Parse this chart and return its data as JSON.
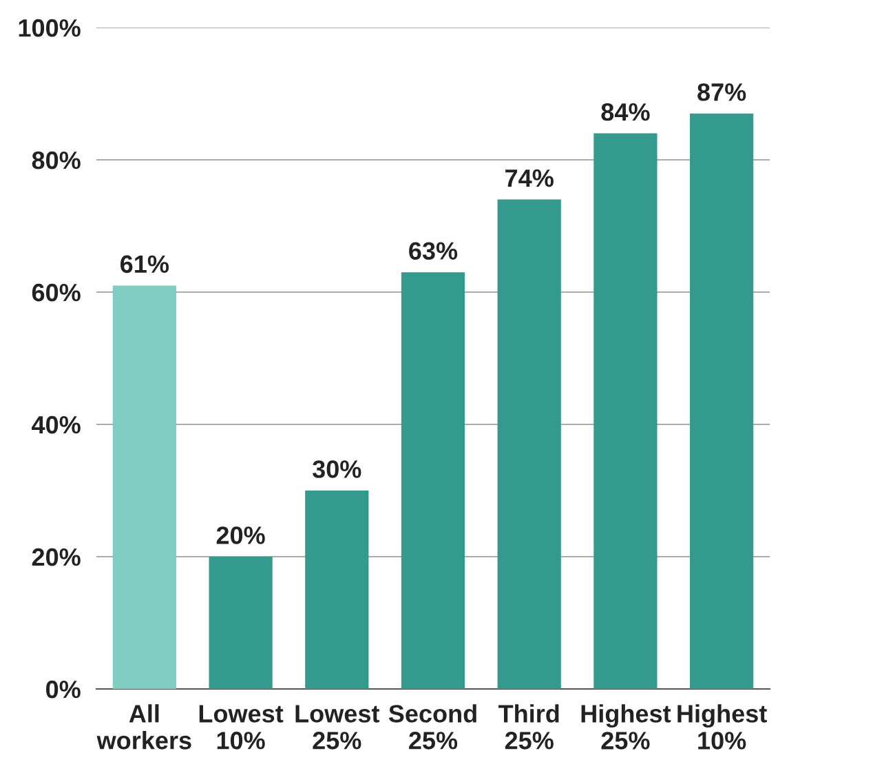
{
  "chart_data": {
    "type": "bar",
    "categories": [
      "All\nworkers",
      "Lowest\n10%",
      "Lowest\n25%",
      "Second\n25%",
      "Third\n25%",
      "Highest\n25%",
      "Highest\n10%"
    ],
    "values": [
      61,
      20,
      30,
      63,
      74,
      84,
      87
    ],
    "colors": [
      "#80cdc1",
      "#359a8e",
      "#359a8e",
      "#359a8e",
      "#359a8e",
      "#359a8e",
      "#359a8e"
    ],
    "value_labels": [
      "61%",
      "20%",
      "30%",
      "63%",
      "74%",
      "84%",
      "87%"
    ],
    "ylim": [
      0,
      100
    ],
    "yticks": [
      {
        "value": 0,
        "label": "0%"
      },
      {
        "value": 20,
        "label": "20%"
      },
      {
        "value": 40,
        "label": "40%"
      },
      {
        "value": 60,
        "label": "60%"
      },
      {
        "value": 80,
        "label": "80%"
      },
      {
        "value": 100,
        "label": "100%"
      }
    ],
    "grid": "y"
  }
}
